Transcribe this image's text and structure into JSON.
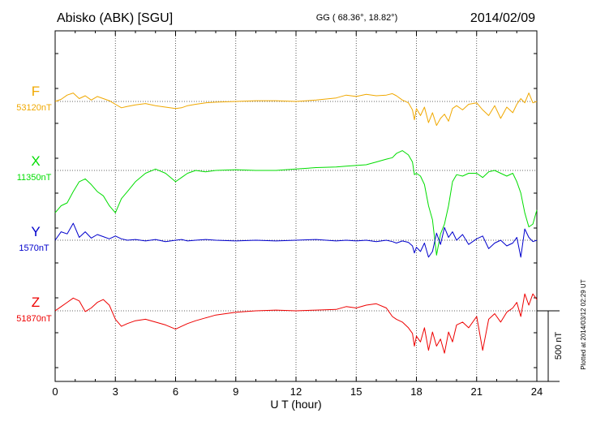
{
  "header": {
    "station": "Abisko (ABK)  [SGU]",
    "coords": "GG ( 68.36°,  18.82°)",
    "date": "2014/02/09"
  },
  "side_note": "Plotted at 2014/03/12 02:29 UT",
  "scale_bar_label": "500 nT",
  "chart_data": {
    "type": "line",
    "xlabel": "U T (hour)",
    "xlim": [
      0,
      24
    ],
    "xticks": [
      0,
      3,
      6,
      9,
      12,
      15,
      18,
      21,
      24
    ],
    "grid": true,
    "scale_bar_nT": 500,
    "series": [
      {
        "name": "F",
        "baseline_label": "53120nT",
        "baseline": 53120,
        "color": "#f0a800",
        "x": [
          0,
          0.3,
          0.6,
          0.9,
          1.2,
          1.5,
          1.8,
          2.1,
          2.4,
          2.7,
          3.0,
          3.3,
          3.6,
          4.0,
          4.5,
          5.0,
          5.5,
          6.0,
          6.3,
          6.6,
          7.0,
          7.5,
          8.0,
          9.0,
          10.0,
          11.0,
          12.0,
          13.0,
          14.0,
          14.5,
          15.0,
          15.5,
          16.0,
          16.5,
          16.8,
          17.0,
          17.3,
          17.6,
          17.8,
          17.9,
          18.0,
          18.2,
          18.4,
          18.6,
          18.8,
          19.0,
          19.2,
          19.4,
          19.6,
          19.8,
          20.0,
          20.3,
          20.6,
          21.0,
          21.3,
          21.6,
          21.9,
          22.2,
          22.5,
          22.8,
          23.0,
          23.2,
          23.4,
          23.6,
          23.8,
          24.0
        ],
        "values": [
          0,
          15,
          45,
          60,
          20,
          40,
          10,
          35,
          20,
          5,
          -20,
          -45,
          -35,
          -25,
          -15,
          -30,
          -40,
          -50,
          -45,
          -30,
          -20,
          -10,
          -5,
          0,
          5,
          5,
          0,
          10,
          25,
          45,
          35,
          50,
          40,
          45,
          55,
          40,
          10,
          -10,
          -60,
          -130,
          -50,
          -100,
          -40,
          -150,
          -80,
          -170,
          -120,
          -90,
          -140,
          -50,
          -30,
          -60,
          -20,
          -10,
          -60,
          -100,
          -30,
          -120,
          -40,
          -80,
          -20,
          20,
          -10,
          60,
          -10,
          0
        ]
      },
      {
        "name": "X",
        "baseline_label": "11350nT",
        "baseline": 11350,
        "color": "#00dd00",
        "x": [
          0,
          0.3,
          0.6,
          0.9,
          1.2,
          1.5,
          1.8,
          2.1,
          2.4,
          2.7,
          3.0,
          3.3,
          3.6,
          4.0,
          4.5,
          5.0,
          5.5,
          6.0,
          6.3,
          6.6,
          7.0,
          7.5,
          8.0,
          9.0,
          10.0,
          11.0,
          12.0,
          13.0,
          14.0,
          14.5,
          15.0,
          15.5,
          16.0,
          16.5,
          16.8,
          17.0,
          17.3,
          17.6,
          17.8,
          17.9,
          18.0,
          18.2,
          18.4,
          18.6,
          18.8,
          19.0,
          19.2,
          19.4,
          19.6,
          19.8,
          20.0,
          20.3,
          20.6,
          21.0,
          21.3,
          21.6,
          21.9,
          22.2,
          22.5,
          22.8,
          23.0,
          23.2,
          23.4,
          23.6,
          23.8,
          24.0
        ],
        "values": [
          -300,
          -250,
          -230,
          -150,
          -80,
          -60,
          -100,
          -150,
          -180,
          -250,
          -300,
          -200,
          -150,
          -80,
          -20,
          10,
          -20,
          -80,
          -50,
          -20,
          0,
          -10,
          0,
          5,
          0,
          0,
          10,
          20,
          25,
          30,
          35,
          40,
          60,
          80,
          90,
          120,
          140,
          110,
          60,
          -30,
          -20,
          -40,
          -100,
          -250,
          -350,
          -600,
          -450,
          -380,
          -250,
          -80,
          -30,
          -40,
          -20,
          -20,
          -50,
          -10,
          0,
          -20,
          -40,
          -20,
          -80,
          -160,
          -300,
          -400,
          -380,
          -280
        ]
      },
      {
        "name": "Y",
        "baseline_label": "1570nT",
        "baseline": 1570,
        "color": "#0000cc",
        "x": [
          0,
          0.3,
          0.6,
          0.9,
          1.2,
          1.5,
          1.8,
          2.1,
          2.4,
          2.7,
          3.0,
          3.3,
          3.6,
          4.0,
          4.5,
          5.0,
          5.5,
          6.0,
          6.3,
          6.6,
          7.0,
          7.5,
          8.0,
          9.0,
          10.0,
          11.0,
          12.0,
          13.0,
          14.0,
          14.5,
          15.0,
          15.5,
          16.0,
          16.5,
          16.8,
          17.0,
          17.3,
          17.6,
          17.8,
          17.9,
          18.0,
          18.2,
          18.4,
          18.6,
          18.8,
          19.0,
          19.2,
          19.4,
          19.6,
          19.8,
          20.0,
          20.3,
          20.6,
          21.0,
          21.3,
          21.6,
          21.9,
          22.2,
          22.5,
          22.8,
          23.0,
          23.2,
          23.4,
          23.6,
          23.8,
          24.0
        ],
        "values": [
          0,
          60,
          45,
          120,
          20,
          60,
          15,
          40,
          25,
          10,
          30,
          10,
          0,
          5,
          -5,
          5,
          -10,
          0,
          5,
          -5,
          0,
          5,
          0,
          -5,
          0,
          -5,
          0,
          5,
          -5,
          0,
          -5,
          0,
          -10,
          0,
          -10,
          -20,
          -5,
          -15,
          -40,
          -90,
          -50,
          -80,
          -20,
          -120,
          -80,
          50,
          -30,
          90,
          20,
          60,
          0,
          40,
          -30,
          10,
          30,
          -60,
          -20,
          0,
          -40,
          -20,
          20,
          -120,
          80,
          20,
          -10,
          0
        ]
      },
      {
        "name": "Z",
        "baseline_label": "51870nT",
        "baseline": 51870,
        "color": "#ee0000",
        "x": [
          0,
          0.3,
          0.6,
          0.9,
          1.2,
          1.5,
          1.8,
          2.1,
          2.4,
          2.7,
          3.0,
          3.3,
          3.6,
          4.0,
          4.5,
          5.0,
          5.5,
          6.0,
          6.3,
          6.6,
          7.0,
          7.5,
          8.0,
          9.0,
          10.0,
          11.0,
          12.0,
          13.0,
          14.0,
          14.5,
          15.0,
          15.5,
          16.0,
          16.5,
          16.8,
          17.0,
          17.3,
          17.6,
          17.8,
          17.9,
          18.0,
          18.2,
          18.4,
          18.6,
          18.8,
          19.0,
          19.2,
          19.4,
          19.6,
          19.8,
          20.0,
          20.3,
          20.6,
          21.0,
          21.3,
          21.6,
          21.9,
          22.2,
          22.5,
          22.8,
          23.0,
          23.2,
          23.4,
          23.6,
          23.8,
          24.0
        ],
        "values": [
          0,
          30,
          60,
          90,
          70,
          -5,
          20,
          60,
          80,
          40,
          -60,
          -110,
          -90,
          -70,
          -60,
          -80,
          -100,
          -130,
          -110,
          -90,
          -70,
          -50,
          -30,
          -10,
          0,
          5,
          0,
          5,
          10,
          30,
          20,
          40,
          50,
          20,
          -40,
          -60,
          -80,
          -120,
          -160,
          -250,
          -180,
          -220,
          -120,
          -280,
          -150,
          -250,
          -200,
          -300,
          -150,
          -220,
          -100,
          -80,
          -120,
          -40,
          -280,
          -60,
          -20,
          -80,
          -10,
          20,
          60,
          -40,
          120,
          40,
          120,
          80
        ]
      }
    ]
  }
}
